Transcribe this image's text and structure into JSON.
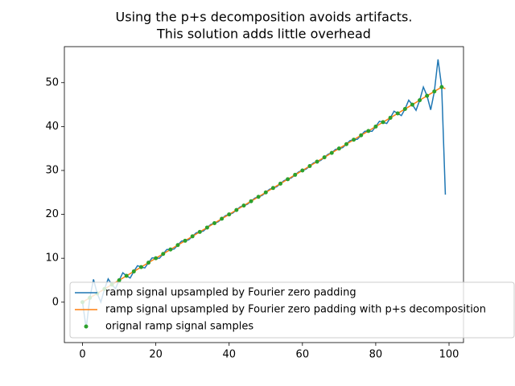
{
  "chart_data": {
    "type": "line",
    "title": [
      "Using the p+s decomposition avoids artifacts.",
      "This solution adds little overhead"
    ],
    "xlim": [
      -4.95,
      103.95
    ],
    "ylim": [
      -9.2,
      58.2
    ],
    "xticks": [
      0,
      20,
      40,
      60,
      80,
      100
    ],
    "yticks": [
      0,
      10,
      20,
      30,
      40,
      50
    ],
    "legend": "lower left",
    "series": [
      {
        "name": "ramp signal upsampled by Fourier zero padding",
        "color": "#1f77b4",
        "style": "line",
        "x": [
          0,
          1,
          2,
          3,
          4,
          5,
          6,
          7,
          8,
          9,
          10,
          11,
          12,
          13,
          14,
          15,
          16,
          17,
          18,
          19,
          20,
          21,
          22,
          23,
          24,
          25,
          26,
          27,
          28,
          29,
          30,
          31,
          32,
          33,
          34,
          35,
          36,
          37,
          38,
          39,
          40,
          41,
          42,
          43,
          44,
          45,
          46,
          47,
          48,
          49,
          50,
          51,
          52,
          53,
          54,
          55,
          56,
          57,
          58,
          59,
          60,
          61,
          62,
          63,
          64,
          65,
          66,
          67,
          68,
          69,
          70,
          71,
          72,
          73,
          74,
          75,
          76,
          77,
          78,
          79,
          80,
          81,
          82,
          83,
          84,
          85,
          86,
          87,
          88,
          89,
          90,
          91,
          92,
          93,
          94,
          95,
          96,
          97,
          98,
          99
        ],
        "values": [
          0,
          -6.0,
          1,
          5.2,
          2,
          0.0,
          3,
          5.3,
          4,
          3.1,
          5,
          6.7,
          6,
          5.5,
          7,
          8.3,
          8,
          7.8,
          9,
          10.1,
          10,
          10.0,
          11,
          12.0,
          12,
          12.1,
          13,
          13.9,
          14,
          14.2,
          15,
          15.8,
          16,
          16.2,
          17,
          17.7,
          18,
          18.3,
          19,
          19.7,
          20,
          20.3,
          21,
          21.7,
          22,
          22.3,
          23,
          23.7,
          24,
          24.3,
          25,
          25.7,
          26,
          26.3,
          27,
          27.7,
          28,
          28.3,
          29,
          29.7,
          30,
          30.3,
          31,
          31.7,
          32,
          32.3,
          33,
          33.7,
          34,
          34.8,
          35,
          35.2,
          36,
          36.8,
          37,
          37.1,
          38,
          38.9,
          39,
          38.9,
          40,
          41.2,
          41,
          40.7,
          42,
          43.5,
          43,
          42.5,
          44,
          46.0,
          45,
          43.7,
          46,
          49.0,
          47,
          43.8,
          48,
          55.3,
          49,
          24.5
        ]
      },
      {
        "name": "ramp signal upsampled by Fourier zero padding with p+s decomposition",
        "color": "#ff7f0e",
        "style": "line",
        "x": [
          0,
          1,
          2,
          3,
          4,
          5,
          6,
          7,
          8,
          9,
          10,
          11,
          12,
          13,
          14,
          15,
          16,
          17,
          18,
          19,
          20,
          21,
          22,
          23,
          24,
          25,
          26,
          27,
          28,
          29,
          30,
          31,
          32,
          33,
          34,
          35,
          36,
          37,
          38,
          39,
          40,
          41,
          42,
          43,
          44,
          45,
          46,
          47,
          48,
          49,
          50,
          51,
          52,
          53,
          54,
          55,
          56,
          57,
          58,
          59,
          60,
          61,
          62,
          63,
          64,
          65,
          66,
          67,
          68,
          69,
          70,
          71,
          72,
          73,
          74,
          75,
          76,
          77,
          78,
          79,
          80,
          81,
          82,
          83,
          84,
          85,
          86,
          87,
          88,
          89,
          90,
          91,
          92,
          93,
          94,
          95,
          96,
          97,
          98,
          99
        ],
        "values": [
          0,
          0.5,
          1,
          1.5,
          2,
          2.5,
          3,
          3.5,
          4,
          4.5,
          5,
          5.5,
          6,
          6.5,
          7,
          7.5,
          8,
          8.5,
          9,
          9.5,
          10,
          10.5,
          11,
          11.5,
          12,
          12.5,
          13,
          13.5,
          14,
          14.5,
          15,
          15.5,
          16,
          16.5,
          17,
          17.5,
          18,
          18.5,
          19,
          19.5,
          20,
          20.5,
          21,
          21.5,
          22,
          22.5,
          23,
          23.5,
          24,
          24.5,
          25,
          25.5,
          26,
          26.5,
          27,
          27.5,
          28,
          28.5,
          29,
          29.5,
          30,
          30.5,
          31,
          31.5,
          32,
          32.5,
          33,
          33.5,
          34,
          34.5,
          35,
          35.5,
          36,
          36.5,
          37,
          37.5,
          38,
          38.5,
          39,
          39.5,
          40,
          40.5,
          41,
          41.5,
          42,
          42.5,
          43,
          43.5,
          44,
          44.5,
          45,
          45.5,
          46,
          46.5,
          47,
          47.5,
          48,
          48.5,
          49,
          48.6
        ]
      },
      {
        "name": "orignal ramp signal samples",
        "color": "#2ca02c",
        "style": "marker",
        "x": [
          0,
          2,
          4,
          6,
          8,
          10,
          12,
          14,
          16,
          18,
          20,
          22,
          24,
          26,
          28,
          30,
          32,
          34,
          36,
          38,
          40,
          42,
          44,
          46,
          48,
          50,
          52,
          54,
          56,
          58,
          60,
          62,
          64,
          66,
          68,
          70,
          72,
          74,
          76,
          78,
          80,
          82,
          84,
          86,
          88,
          90,
          92,
          94,
          96,
          98
        ],
        "values": [
          0,
          1,
          2,
          3,
          4,
          5,
          6,
          7,
          8,
          9,
          10,
          11,
          12,
          13,
          14,
          15,
          16,
          17,
          18,
          19,
          20,
          21,
          22,
          23,
          24,
          25,
          26,
          27,
          28,
          29,
          30,
          31,
          32,
          33,
          34,
          35,
          36,
          37,
          38,
          39,
          40,
          41,
          42,
          43,
          44,
          45,
          46,
          47,
          48,
          49
        ]
      }
    ]
  }
}
